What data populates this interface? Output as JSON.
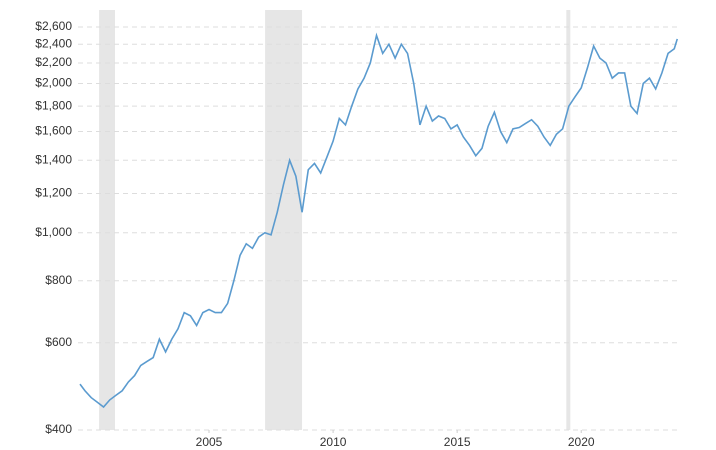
{
  "chart_data": {
    "type": "line",
    "log_y": true,
    "grid": true,
    "ylim": [
      400,
      2600
    ],
    "yticks": [
      {
        "value": 400,
        "label": "$400"
      },
      {
        "value": 600,
        "label": "$600"
      },
      {
        "value": 800,
        "label": "$800"
      },
      {
        "value": 1000,
        "label": "$1,000"
      },
      {
        "value": 1200,
        "label": "$1,200"
      },
      {
        "value": 1400,
        "label": "$1,400"
      },
      {
        "value": 1600,
        "label": "$1,600"
      },
      {
        "value": 1800,
        "label": "$1,800"
      },
      {
        "value": 2000,
        "label": "$2,000"
      },
      {
        "value": 2200,
        "label": "$2,200"
      },
      {
        "value": 2400,
        "label": "$2,400"
      },
      {
        "value": 2600,
        "label": "$2,600"
      }
    ],
    "xlim": [
      1999.72,
      2023.9
    ],
    "xticks": [
      2005,
      2010,
      2015,
      2020
    ],
    "shaded_ranges": [
      [
        2000.57,
        2001.21
      ],
      [
        2007.26,
        2008.75
      ],
      [
        2019.4,
        2019.56
      ]
    ],
    "shade_color": "#e6e6e6",
    "series": [
      {
        "color": "#5b9bcf",
        "x": [
          1999.8,
          2000.0,
          2000.25,
          2000.5,
          2000.75,
          2001.0,
          2001.25,
          2001.5,
          2001.75,
          2002.0,
          2002.25,
          2002.5,
          2002.75,
          2003.0,
          2003.25,
          2003.5,
          2003.75,
          2004.0,
          2004.25,
          2004.5,
          2004.75,
          2005.0,
          2005.25,
          2005.5,
          2005.75,
          2006.0,
          2006.25,
          2006.5,
          2006.75,
          2007.0,
          2007.25,
          2007.5,
          2007.75,
          2008.0,
          2008.25,
          2008.5,
          2008.75,
          2009.0,
          2009.25,
          2009.5,
          2009.75,
          2010.0,
          2010.25,
          2010.5,
          2010.75,
          2011.0,
          2011.25,
          2011.5,
          2011.75,
          2012.0,
          2012.25,
          2012.5,
          2012.75,
          2013.0,
          2013.25,
          2013.5,
          2013.75,
          2014.0,
          2014.25,
          2014.5,
          2014.75,
          2015.0,
          2015.25,
          2015.5,
          2015.75,
          2016.0,
          2016.25,
          2016.5,
          2016.75,
          2017.0,
          2017.25,
          2017.5,
          2017.75,
          2018.0,
          2018.25,
          2018.5,
          2018.75,
          2019.0,
          2019.25,
          2019.5,
          2019.75,
          2020.0,
          2020.25,
          2020.5,
          2020.75,
          2021.0,
          2021.25,
          2021.5,
          2021.75,
          2022.0,
          2022.25,
          2022.5,
          2022.75,
          2023.0,
          2023.25,
          2023.5,
          2023.75,
          2023.87
        ],
        "values": [
          495,
          480,
          465,
          455,
          445,
          460,
          470,
          480,
          500,
          515,
          540,
          550,
          560,
          610,
          575,
          610,
          640,
          690,
          680,
          650,
          690,
          700,
          690,
          690,
          720,
          800,
          900,
          950,
          930,
          980,
          1000,
          990,
          1100,
          1250,
          1400,
          1300,
          1100,
          1340,
          1380,
          1320,
          1420,
          1530,
          1700,
          1650,
          1800,
          1950,
          2050,
          2200,
          2500,
          2300,
          2400,
          2250,
          2400,
          2300,
          2000,
          1650,
          1800,
          1680,
          1720,
          1700,
          1620,
          1650,
          1560,
          1500,
          1430,
          1480,
          1640,
          1750,
          1600,
          1520,
          1620,
          1630,
          1660,
          1690,
          1640,
          1560,
          1500,
          1580,
          1620,
          1800,
          1880,
          1960,
          2150,
          2380,
          2250,
          2200,
          2050,
          2100,
          2100,
          1800,
          1740,
          2000,
          2050,
          1950,
          2100,
          2300,
          2350,
          2460
        ]
      }
    ]
  }
}
